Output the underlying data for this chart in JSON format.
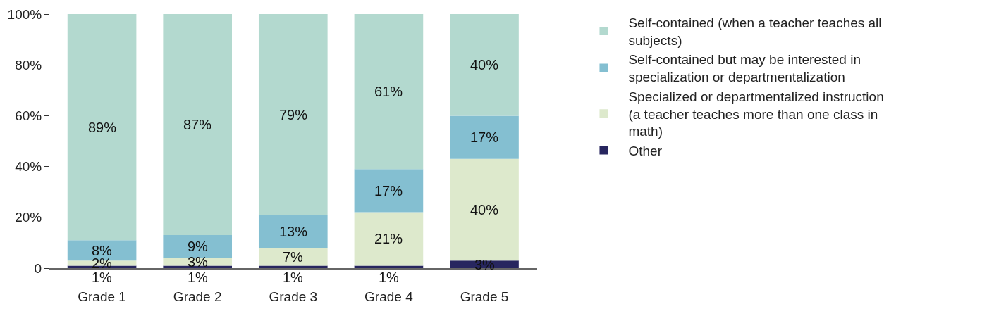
{
  "chart_data": {
    "type": "bar",
    "stacked": true,
    "categories": [
      "Grade 1",
      "Grade 2",
      "Grade 3",
      "Grade 4",
      "Grade 5"
    ],
    "series": [
      {
        "name": "Other",
        "color": "#27265f",
        "values": [
          1,
          1,
          1,
          1,
          3
        ],
        "value_labels": [
          "1%",
          "1%",
          "1%",
          "1%",
          "3%"
        ]
      },
      {
        "name": "Specialized or departmentalized instruction (a teacher teaches more than one class in math)",
        "color": "#dde9cc",
        "values": [
          2,
          3,
          7,
          21,
          40
        ],
        "value_labels": [
          "2%",
          "3%",
          "7%",
          "21%",
          "40%"
        ]
      },
      {
        "name": "Self-contained but may be interested in specialization or departmentalization",
        "color": "#84bfd1",
        "values": [
          8,
          9,
          13,
          17,
          17
        ],
        "value_labels": [
          "8%",
          "9%",
          "13%",
          "17%",
          "17%"
        ]
      },
      {
        "name": "Self-contained (when a teacher teaches all subjects)",
        "color": "#b3d9cf",
        "values": [
          89,
          87,
          79,
          61,
          40
        ],
        "value_labels": [
          "89%",
          "87%",
          "79%",
          "61%",
          "40%"
        ]
      }
    ],
    "ylim": [
      0,
      100
    ],
    "yticks": [
      {
        "value": 0,
        "label": "0"
      },
      {
        "value": 20,
        "label": "20%"
      },
      {
        "value": 40,
        "label": "40%"
      },
      {
        "value": 60,
        "label": "60%"
      },
      {
        "value": 80,
        "label": "80%"
      },
      {
        "value": 100,
        "label": "100%"
      }
    ],
    "legend": "right"
  }
}
